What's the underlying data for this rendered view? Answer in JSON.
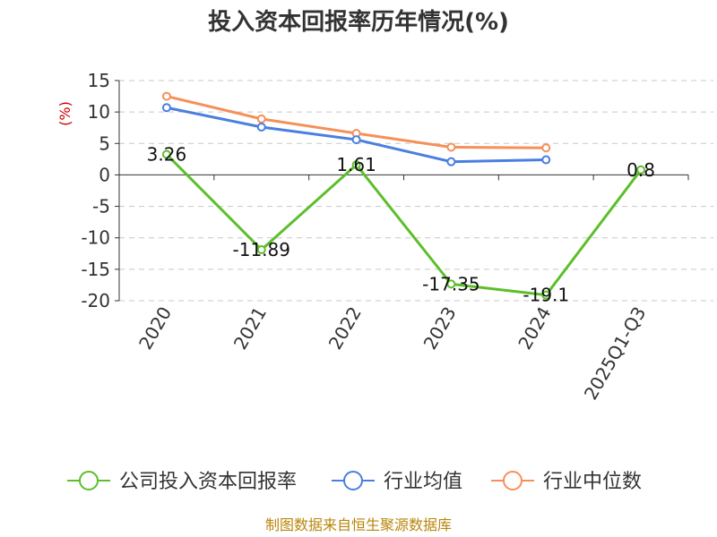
{
  "chart_data": {
    "type": "line",
    "title": "投入资本回报率历年情况(%)",
    "ylabel": "(%)",
    "categories": [
      "2020",
      "2021",
      "2022",
      "2023",
      "2024",
      "2025Q1-Q3"
    ],
    "yticks": [
      "15",
      "10",
      "5",
      "0",
      "-5",
      "-10",
      "-15",
      "-20"
    ],
    "ylim": [
      -20,
      15
    ],
    "grid": true,
    "legend": "bottom",
    "series": [
      {
        "name": "公司投入资本回报率",
        "color": "#5cbf2a",
        "values": [
          3.26,
          -11.89,
          1.61,
          -17.35,
          -19.1,
          0.8
        ],
        "labels": [
          "3.26",
          "-11.89",
          "1.61",
          "-17.35",
          "-19.1",
          "0.8"
        ]
      },
      {
        "name": "行业均值",
        "color": "#4a7fe0",
        "values": [
          10.7,
          7.6,
          5.6,
          2.1,
          2.4,
          null
        ]
      },
      {
        "name": "行业中位数",
        "color": "#f5905a",
        "values": [
          12.5,
          8.9,
          6.6,
          4.4,
          4.3,
          null
        ]
      }
    ]
  },
  "source": "制图数据来自恒生聚源数据库"
}
